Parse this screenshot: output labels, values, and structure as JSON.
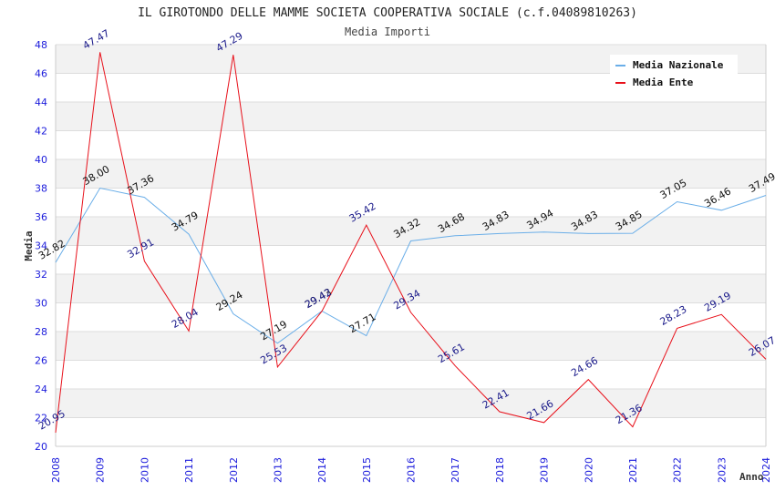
{
  "chart_data": {
    "type": "line",
    "title": "IL GIROTONDO DELLE MAMME SOCIETA COOPERATIVA SOCIALE (c.f.04089810263)",
    "subtitle": "Media Importi",
    "xlabel": "Anno",
    "ylabel": "Media",
    "ylim": [
      20,
      48
    ],
    "yticks": [
      "20",
      "22",
      "24",
      "26",
      "28",
      "30",
      "32",
      "34",
      "36",
      "38",
      "40",
      "42",
      "44",
      "46",
      "48"
    ],
    "categories": [
      "2008",
      "2009",
      "2010",
      "2011",
      "2012",
      "2013",
      "2014",
      "2015",
      "2016",
      "2017",
      "2018",
      "2019",
      "2020",
      "2021",
      "2022",
      "2023",
      "2024"
    ],
    "grid": true,
    "legend_position": "top-right",
    "series": [
      {
        "name": "Media Nazionale",
        "color": "#6aaee8",
        "values": [
          32.82,
          38.0,
          37.36,
          34.79,
          29.24,
          27.19,
          29.43,
          27.71,
          34.32,
          34.68,
          34.83,
          34.94,
          34.83,
          34.85,
          37.05,
          36.46,
          37.49
        ],
        "labels": [
          "32.82",
          "38.00",
          "37.36",
          "34.79",
          "29.24",
          "27.19",
          "29.43",
          "27.71",
          "34.32",
          "34.68",
          "34.83",
          "34.94",
          "34.83",
          "34.85",
          "37.05",
          "36.46",
          "37.49"
        ]
      },
      {
        "name": "Media Ente",
        "color": "#e8101a",
        "values": [
          20.95,
          47.47,
          32.91,
          28.04,
          47.29,
          25.53,
          29.42,
          35.42,
          29.34,
          25.61,
          22.41,
          21.66,
          24.66,
          21.36,
          28.23,
          29.19,
          26.07
        ],
        "labels": [
          "20.95",
          "47.47",
          "32.91",
          "28.04",
          "47.29",
          "25.53",
          "29.42",
          "35.42",
          "29.34",
          "25.61",
          "22.41",
          "21.66",
          "24.66",
          "21.36",
          "28.23",
          "29.19",
          "26.07"
        ]
      }
    ]
  }
}
